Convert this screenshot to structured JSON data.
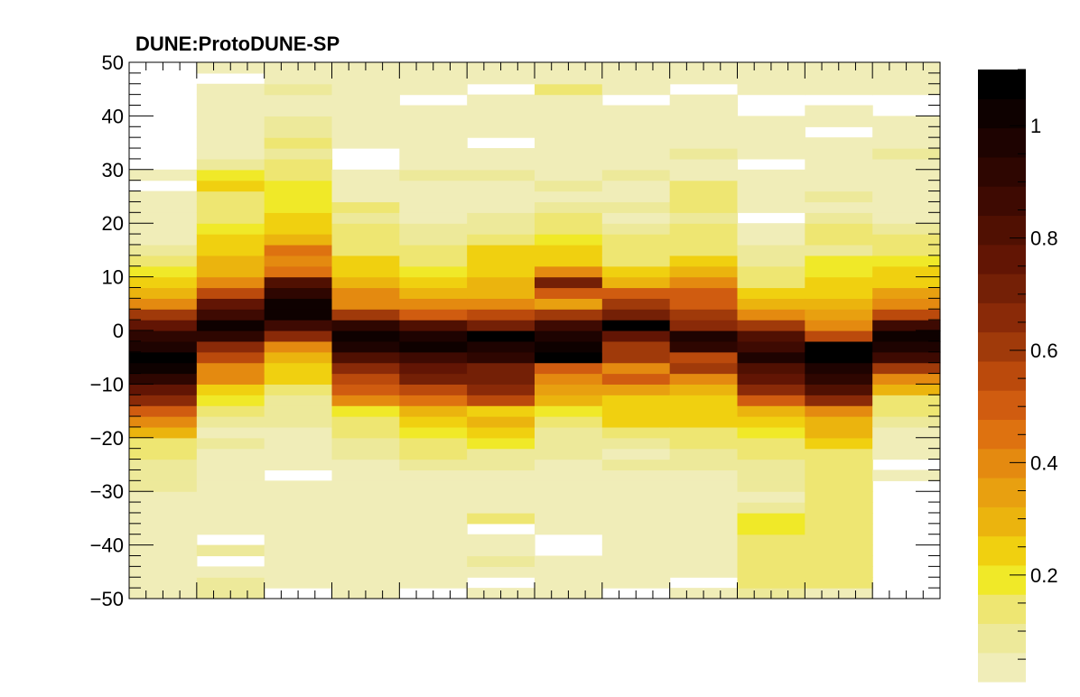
{
  "chart_data": {
    "type": "heatmap",
    "title": "DUNE:ProtoDUNE-SP",
    "xlabel": "",
    "ylabel": "",
    "x_ticks_labeled": false,
    "x_bins": 12,
    "ylim": [
      -50,
      50
    ],
    "y_bin_width": 2,
    "y_ticks": [
      -50,
      -40,
      -30,
      -20,
      -10,
      0,
      10,
      20,
      30,
      40,
      50
    ],
    "y_tick_labels": [
      "−50",
      "−40",
      "−30",
      "−20",
      "−10",
      "0",
      "10",
      "20",
      "30",
      "40",
      "50"
    ],
    "zlim": [
      0.01,
      1.1
    ],
    "z_ticks": [
      0.2,
      0.4,
      0.6,
      0.8,
      1
    ],
    "z_tick_labels": [
      "0.2",
      "0.4",
      "0.6",
      "0.8",
      "1"
    ],
    "palette": [
      "#f0edb8",
      "#ede99a",
      "#eee672",
      "#f0e928",
      "#f0d010",
      "#ebb40e",
      "#e8a010",
      "#e48a10",
      "#de7210",
      "#d05c10",
      "#bb4a0c",
      "#a03a0a",
      "#8a2a08",
      "#742006",
      "#621504",
      "#501002",
      "#3e0a02",
      "#2e0601",
      "#1e0301",
      "#0e0100",
      "#000000"
    ],
    "columns": [
      [
        0.05,
        0.05,
        0.05,
        0.02,
        0.05,
        0.05,
        0.05,
        0.05,
        0.05,
        0.05,
        0.1,
        0.1,
        0.1,
        0.15,
        0.15,
        0.3,
        0.42,
        0.5,
        0.65,
        0.78,
        0.9,
        1.02,
        1.05,
        0.98,
        0.9,
        0.78,
        0.6,
        0.42,
        0.3,
        0.24,
        0.2,
        0.15,
        0.1,
        0.05,
        0.05,
        0.03,
        0.02,
        0.06,
        0.0,
        0.05,
        0.0,
        0.0,
        0.0,
        0.0,
        0.0,
        0.0,
        0.0,
        0.0,
        0.0,
        0.0
      ],
      [
        0.1,
        0.1,
        0.05,
        0.0,
        0.1,
        0.0,
        0.05,
        0.05,
        0.05,
        0.05,
        0.05,
        0.05,
        0.05,
        0.05,
        0.08,
        0.05,
        0.08,
        0.15,
        0.17,
        0.25,
        0.38,
        0.42,
        0.58,
        0.68,
        0.9,
        1.0,
        0.85,
        0.75,
        0.55,
        0.42,
        0.3,
        0.28,
        0.25,
        0.22,
        0.2,
        0.12,
        0.16,
        0.15,
        0.25,
        0.17,
        0.1,
        0.05,
        0.05,
        0.05,
        0.05,
        0.05,
        0.05,
        0.05,
        0.0,
        0.05
      ],
      [
        0.0,
        0.05,
        0.05,
        0.05,
        0.05,
        0.05,
        0.05,
        0.05,
        0.05,
        0.05,
        0.05,
        0.0,
        0.05,
        0.05,
        0.05,
        0.05,
        0.1,
        0.1,
        0.1,
        0.15,
        0.22,
        0.25,
        0.3,
        0.42,
        0.68,
        0.85,
        1.0,
        1.02,
        0.94,
        0.82,
        0.46,
        0.4,
        0.45,
        0.3,
        0.25,
        0.22,
        0.2,
        0.2,
        0.17,
        0.15,
        0.12,
        0.1,
        0.12,
        0.1,
        0.07,
        0.05,
        0.05,
        0.1,
        0.05,
        0.05
      ],
      [
        0.05,
        0.05,
        0.05,
        0.05,
        0.05,
        0.05,
        0.05,
        0.05,
        0.05,
        0.05,
        0.05,
        0.05,
        0.05,
        0.1,
        0.1,
        0.15,
        0.15,
        0.2,
        0.4,
        0.48,
        0.55,
        0.65,
        0.8,
        0.95,
        1.02,
        0.92,
        0.6,
        0.42,
        0.4,
        0.3,
        0.25,
        0.22,
        0.15,
        0.15,
        0.12,
        0.1,
        0.15,
        0.05,
        0.05,
        0.05,
        0.0,
        0.0,
        0.05,
        0.05,
        0.05,
        0.05,
        0.05,
        0.05,
        0.05,
        0.05
      ],
      [
        0.0,
        0.05,
        0.05,
        0.05,
        0.05,
        0.05,
        0.05,
        0.05,
        0.05,
        0.05,
        0.05,
        0.05,
        0.1,
        0.12,
        0.15,
        0.2,
        0.22,
        0.3,
        0.45,
        0.55,
        0.72,
        0.78,
        0.88,
        1.0,
        0.95,
        0.8,
        0.5,
        0.4,
        0.3,
        0.25,
        0.2,
        0.15,
        0.12,
        0.1,
        0.1,
        0.05,
        0.05,
        0.05,
        0.05,
        0.08,
        0.05,
        0.05,
        0.05,
        0.05,
        0.05,
        0.05,
        0.0,
        0.05,
        0.05,
        0.05
      ],
      [
        0.05,
        0.0,
        0.05,
        0.1,
        0.05,
        0.05,
        0.0,
        0.15,
        0.05,
        0.05,
        0.05,
        0.05,
        0.1,
        0.1,
        0.2,
        0.25,
        0.3,
        0.25,
        0.55,
        0.65,
        0.72,
        0.72,
        0.9,
        0.95,
        1.1,
        0.7,
        0.55,
        0.42,
        0.3,
        0.28,
        0.22,
        0.22,
        0.22,
        0.15,
        0.1,
        0.1,
        0.05,
        0.05,
        0.05,
        0.1,
        0.05,
        0.05,
        0.0,
        0.05,
        0.05,
        0.05,
        0.05,
        0.0,
        0.05,
        0.05
      ],
      [
        0.05,
        0.05,
        0.05,
        0.05,
        0.0,
        0.0,
        0.05,
        0.05,
        0.05,
        0.02,
        0.02,
        0.05,
        0.05,
        0.1,
        0.1,
        0.1,
        0.15,
        0.2,
        0.3,
        0.35,
        0.42,
        0.5,
        1.05,
        1.0,
        0.98,
        0.85,
        0.6,
        0.35,
        0.5,
        0.7,
        0.42,
        0.25,
        0.22,
        0.2,
        0.15,
        0.15,
        0.1,
        0.05,
        0.1,
        0.05,
        0.05,
        0.05,
        0.05,
        0.05,
        0.05,
        0.05,
        0.05,
        0.15,
        0.05,
        0.05
      ],
      [
        0.0,
        0.05,
        0.05,
        0.05,
        0.05,
        0.05,
        0.05,
        0.05,
        0.05,
        0.05,
        0.05,
        0.05,
        0.1,
        0.05,
        0.1,
        0.15,
        0.22,
        0.25,
        0.25,
        0.35,
        0.48,
        0.42,
        0.6,
        0.6,
        0.75,
        1.05,
        0.7,
        0.6,
        0.48,
        0.3,
        0.22,
        0.15,
        0.15,
        0.15,
        0.1,
        0.05,
        0.1,
        0.05,
        0.05,
        0.1,
        0.05,
        0.05,
        0.05,
        0.05,
        0.05,
        0.05,
        0.0,
        0.05,
        0.05,
        0.05
      ],
      [
        0.05,
        0.0,
        0.05,
        0.05,
        0.05,
        0.05,
        0.05,
        0.05,
        0.05,
        0.05,
        0.05,
        0.05,
        0.1,
        0.1,
        0.15,
        0.15,
        0.25,
        0.25,
        0.25,
        0.3,
        0.42,
        0.6,
        0.58,
        0.92,
        0.98,
        0.65,
        0.6,
        0.48,
        0.48,
        0.42,
        0.3,
        0.22,
        0.15,
        0.15,
        0.12,
        0.1,
        0.15,
        0.15,
        0.15,
        0.05,
        0.05,
        0.1,
        0.05,
        0.05,
        0.05,
        0.05,
        0.05,
        0.0,
        0.05,
        0.05
      ],
      [
        0.1,
        0.12,
        0.15,
        0.15,
        0.15,
        0.15,
        0.2,
        0.2,
        0.1,
        0.05,
        0.1,
        0.1,
        0.1,
        0.15,
        0.15,
        0.2,
        0.22,
        0.3,
        0.48,
        0.65,
        0.78,
        0.8,
        0.98,
        0.88,
        0.82,
        0.6,
        0.38,
        0.3,
        0.22,
        0.15,
        0.15,
        0.1,
        0.1,
        0.05,
        0.05,
        0.0,
        0.05,
        0.05,
        0.05,
        0.05,
        0.0,
        0.05,
        0.05,
        0.05,
        0.05,
        0.0,
        0.0,
        0.05,
        0.05,
        0.05
      ],
      [
        0.05,
        0.12,
        0.15,
        0.15,
        0.15,
        0.12,
        0.15,
        0.15,
        0.15,
        0.15,
        0.12,
        0.12,
        0.12,
        0.15,
        0.22,
        0.3,
        0.3,
        0.38,
        0.65,
        0.8,
        0.9,
        0.95,
        1.05,
        1.08,
        0.55,
        0.42,
        0.35,
        0.3,
        0.25,
        0.22,
        0.18,
        0.18,
        0.1,
        0.15,
        0.15,
        0.1,
        0.05,
        0.1,
        0.05,
        0.05,
        0.05,
        0.05,
        0.05,
        0.0,
        0.05,
        0.05,
        0.0,
        0.05,
        0.02,
        0.05
      ],
      [
        0.0,
        0.0,
        0.0,
        0.0,
        0.0,
        0.0,
        0.0,
        0.0,
        0.0,
        0.0,
        0.0,
        0.05,
        0.0,
        0.05,
        0.05,
        0.05,
        0.1,
        0.15,
        0.15,
        0.3,
        0.42,
        0.6,
        0.85,
        0.95,
        1.0,
        0.85,
        0.55,
        0.42,
        0.35,
        0.25,
        0.22,
        0.2,
        0.15,
        0.15,
        0.1,
        0.05,
        0.05,
        0.05,
        0.05,
        0.05,
        0.05,
        0.1,
        0.05,
        0.05,
        0.05,
        0.0,
        0.0,
        0.05,
        0.05,
        0.05
      ]
    ]
  }
}
